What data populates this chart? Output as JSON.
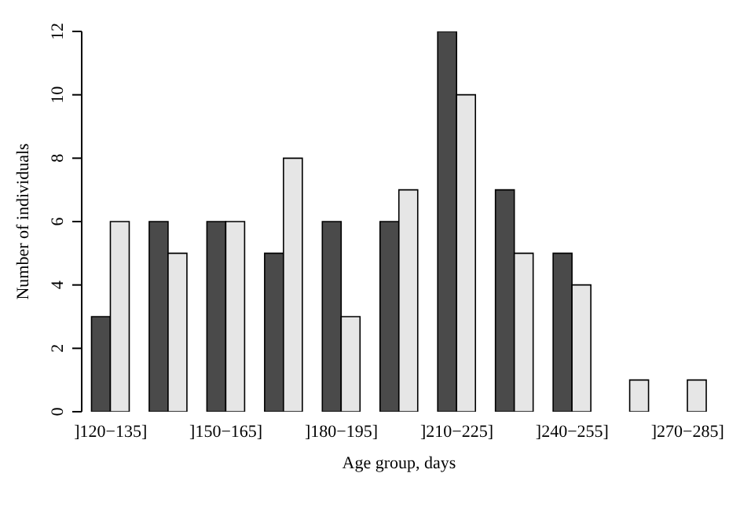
{
  "chart_data": {
    "type": "bar",
    "xlabel": "Age group, days",
    "ylabel": "Number of individuals",
    "categories": [
      "]120−135]",
      null,
      "]150−165]",
      null,
      "]180−195]",
      null,
      "]210−225]",
      null,
      "]240−255]",
      null,
      "]270−285]"
    ],
    "series": [
      {
        "color": "#4a4a4a",
        "values": [
          3,
          6,
          6,
          5,
          6,
          6,
          12,
          7,
          5,
          0,
          0
        ]
      },
      {
        "color": "#e6e6e6",
        "values": [
          6,
          5,
          6,
          8,
          3,
          7,
          10,
          5,
          4,
          1,
          1
        ]
      }
    ],
    "ylim": [
      0,
      12
    ],
    "yticks": [
      0,
      2,
      4,
      6,
      8,
      10,
      12
    ],
    "grid": false,
    "legend": false
  }
}
